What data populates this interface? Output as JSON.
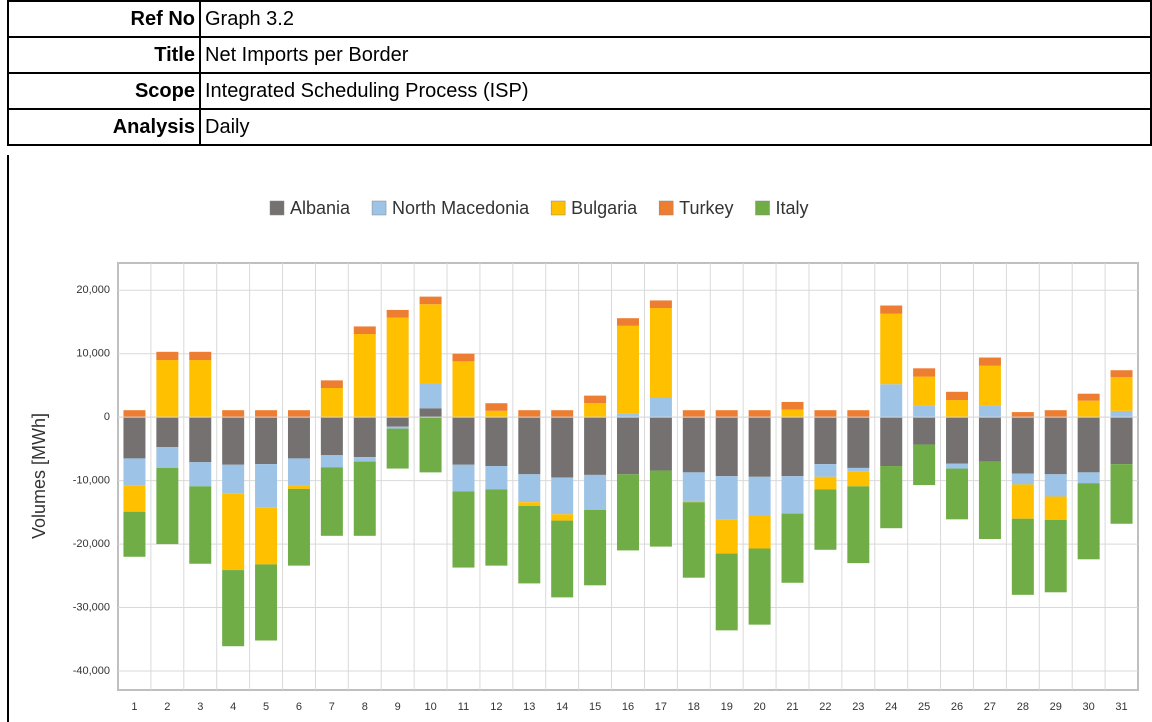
{
  "header": {
    "rows": [
      {
        "label": "Ref No",
        "value": "Graph 3.2"
      },
      {
        "label": "Title",
        "value": "Net Imports per Border"
      },
      {
        "label": "Scope",
        "value": "Integrated Scheduling Process (ISP)"
      },
      {
        "label": "Analysis",
        "value": "Daily"
      }
    ]
  },
  "chart_data": {
    "type": "bar",
    "stacked": true,
    "y_label": "Volumes [MWh]",
    "categories": [
      "1",
      "2",
      "3",
      "4",
      "5",
      "6",
      "7",
      "8",
      "9",
      "10",
      "11",
      "12",
      "13",
      "14",
      "15",
      "16",
      "17",
      "18",
      "19",
      "20",
      "21",
      "22",
      "23",
      "24",
      "25",
      "26",
      "27",
      "28",
      "29",
      "30",
      "31"
    ],
    "series": [
      {
        "name": "Albania",
        "color": "#767171",
        "values": [
          -6500,
          -4700,
          -7100,
          -7500,
          -7400,
          -6500,
          -6000,
          -6300,
          -1500,
          1400,
          -7500,
          -7700,
          -9000,
          -9500,
          -9100,
          -9000,
          -8400,
          -8700,
          -9300,
          -9400,
          -9300,
          -7400,
          -8000,
          -7700,
          -4300,
          -7300,
          -7000,
          -8900,
          -9000,
          -8700,
          -7400
        ]
      },
      {
        "name": "North Macedonia",
        "color": "#9dc3e6",
        "values": [
          -4300,
          -3300,
          -3800,
          -4500,
          -6800,
          -4200,
          -1900,
          -700,
          -300,
          3900,
          -4200,
          -3700,
          -4400,
          -5800,
          -5500,
          600,
          3100,
          -4500,
          -6800,
          -6100,
          -5900,
          -2000,
          -600,
          5200,
          1900,
          -800,
          1900,
          -1700,
          -3500,
          -1700,
          1000
        ]
      },
      {
        "name": "Bulgaria",
        "color": "#ffc000",
        "values": [
          -4100,
          9000,
          9000,
          -12100,
          -9000,
          -600,
          4600,
          13100,
          15700,
          12500,
          8800,
          1000,
          -600,
          -1000,
          2200,
          13800,
          14100,
          -200,
          -5400,
          -5200,
          1200,
          -2000,
          -2300,
          11100,
          4500,
          2700,
          6200,
          -5400,
          -3700,
          2600,
          5300
        ]
      },
      {
        "name": "Turkey",
        "color": "#ed7d31",
        "values": [
          1100,
          1300,
          1300,
          1100,
          1100,
          1100,
          1200,
          1200,
          1200,
          1200,
          1200,
          1200,
          1100,
          1100,
          1200,
          1200,
          1200,
          1100,
          1100,
          1100,
          1200,
          1100,
          1100,
          1300,
          1300,
          1300,
          1300,
          800,
          1100,
          1100,
          1100
        ]
      },
      {
        "name": "Italy",
        "color": "#70ad47",
        "values": [
          -7100,
          -12000,
          -12200,
          -12000,
          -12000,
          -12100,
          -10800,
          -11700,
          -6300,
          -8700,
          -12000,
          -12000,
          -12200,
          -12100,
          -11900,
          -12000,
          -12000,
          -11900,
          -12100,
          -12000,
          -10900,
          -9500,
          -12100,
          -9800,
          -6400,
          -8000,
          -12200,
          -12000,
          -11400,
          -12000,
          -9400
        ]
      }
    ],
    "ylim": [
      -43000,
      24300
    ],
    "yticks": [
      {
        "value": -40000,
        "label": "-40,000"
      },
      {
        "value": -30000,
        "label": "-30,000"
      },
      {
        "value": -20000,
        "label": "-20,000"
      },
      {
        "value": -10000,
        "label": "-10,000"
      },
      0,
      {
        "value": 10000,
        "label": "10,000"
      },
      {
        "value": 20000,
        "label": "20,000"
      }
    ],
    "grid": true,
    "legend": "top"
  }
}
